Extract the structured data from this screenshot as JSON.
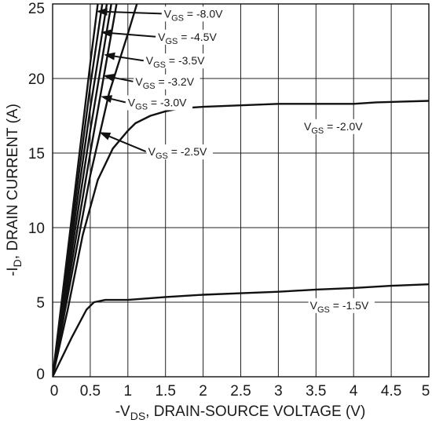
{
  "chart_data": {
    "type": "line",
    "title": "",
    "xlabel": {
      "prefix": "-V",
      "sub": "DS",
      "suffix": ", DRAIN-SOURCE VOLTAGE (V)"
    },
    "ylabel": {
      "prefix": "-I",
      "sub": "D",
      "suffix": ", DRAIN CURRENT (A)"
    },
    "xlim": [
      0,
      5
    ],
    "ylim": [
      0,
      25
    ],
    "x_ticks": [
      0,
      0.5,
      1,
      1.5,
      2,
      2.5,
      3,
      3.5,
      4,
      4.5,
      5
    ],
    "x_tick_labels": [
      "0",
      "0.5",
      "1",
      "1.5",
      "2",
      "2.5",
      "3",
      "3.5",
      "4",
      "4.5",
      "5"
    ],
    "y_ticks": [
      0,
      5,
      10,
      15,
      20,
      25
    ],
    "y_tick_labels": [
      "0",
      "5",
      "10",
      "15",
      "20",
      "25"
    ],
    "grid": true,
    "series": [
      {
        "name": "V_GS = -1.5V",
        "label_prefix": "V",
        "label_sub": "GS",
        "label_suffix": " = -1.5V",
        "points": [
          [
            0,
            0
          ],
          [
            0.25,
            2.6
          ],
          [
            0.45,
            4.5
          ],
          [
            0.55,
            5.0
          ],
          [
            0.7,
            5.15
          ],
          [
            1.0,
            5.15
          ],
          [
            1.5,
            5.35
          ],
          [
            2.0,
            5.5
          ],
          [
            2.5,
            5.6
          ],
          [
            3.0,
            5.7
          ],
          [
            3.5,
            5.85
          ],
          [
            4.0,
            5.95
          ],
          [
            4.5,
            6.1
          ],
          [
            5.0,
            6.2
          ]
        ]
      },
      {
        "name": "V_GS = -2.0V",
        "label_prefix": "V",
        "label_sub": "GS",
        "label_suffix": " = -2.0V",
        "points": [
          [
            0,
            0
          ],
          [
            0.2,
            4.5
          ],
          [
            0.4,
            9.5
          ],
          [
            0.6,
            13.2
          ],
          [
            0.8,
            15.3
          ],
          [
            1.0,
            16.5
          ],
          [
            1.1,
            17.0
          ],
          [
            1.3,
            17.5
          ],
          [
            1.5,
            17.8
          ],
          [
            1.7,
            18.0
          ],
          [
            2.0,
            18.1
          ],
          [
            2.5,
            18.2
          ],
          [
            3.0,
            18.3
          ],
          [
            4.0,
            18.3
          ],
          [
            4.3,
            18.4
          ],
          [
            5.0,
            18.5
          ]
        ]
      },
      {
        "name": "V_GS = -2.5V",
        "label_prefix": "V",
        "label_sub": "GS",
        "label_suffix": " = -2.5V",
        "points": [
          [
            0,
            0
          ],
          [
            0.5,
            13.5
          ],
          [
            0.75,
            19.0
          ],
          [
            1.0,
            23.0
          ],
          [
            1.12,
            25.0
          ]
        ]
      },
      {
        "name": "V_GS = -3.0V",
        "label_prefix": "V",
        "label_sub": "GS",
        "label_suffix": " = -3.0V",
        "points": [
          [
            0,
            0
          ],
          [
            0.5,
            15.0
          ],
          [
            0.85,
            25.0
          ]
        ]
      },
      {
        "name": "V_GS = -3.2V",
        "label_prefix": "V",
        "label_sub": "GS",
        "label_suffix": " = -3.2V",
        "points": [
          [
            0,
            0
          ],
          [
            0.5,
            16.5
          ],
          [
            0.78,
            25.0
          ]
        ]
      },
      {
        "name": "V_GS = -3.5V",
        "label_prefix": "V",
        "label_sub": "GS",
        "label_suffix": " = -3.5V",
        "points": [
          [
            0,
            0
          ],
          [
            0.5,
            18.0
          ],
          [
            0.72,
            25.0
          ]
        ]
      },
      {
        "name": "V_GS = -4.5V",
        "label_prefix": "V",
        "label_sub": "GS",
        "label_suffix": " = -4.5V",
        "points": [
          [
            0,
            0
          ],
          [
            0.5,
            19.5
          ],
          [
            0.66,
            25.0
          ]
        ]
      },
      {
        "name": "V_GS = -8.0V",
        "label_prefix": "V",
        "label_sub": "GS",
        "label_suffix": " = -8.0V",
        "points": [
          [
            0,
            0
          ],
          [
            0.5,
            21.0
          ],
          [
            0.6,
            25.0
          ]
        ]
      }
    ],
    "annotations": [
      {
        "series": 7,
        "text_x": 1.48,
        "text_y": 24.35,
        "tip_x": 0.58,
        "tip_y": 24.5,
        "arrow": true
      },
      {
        "series": 6,
        "text_x": 1.4,
        "text_y": 22.8,
        "tip_x": 0.64,
        "tip_y": 23.1,
        "arrow": true
      },
      {
        "series": 5,
        "text_x": 1.24,
        "text_y": 21.2,
        "tip_x": 0.68,
        "tip_y": 21.6,
        "arrow": true
      },
      {
        "series": 4,
        "text_x": 1.1,
        "text_y": 19.8,
        "tip_x": 0.67,
        "tip_y": 20.2,
        "arrow": true
      },
      {
        "series": 3,
        "text_x": 1.0,
        "text_y": 18.4,
        "tip_x": 0.64,
        "tip_y": 18.8,
        "arrow": true
      },
      {
        "series": 2,
        "text_x": 1.27,
        "text_y": 15.1,
        "tip_x": 0.62,
        "tip_y": 16.4,
        "arrow": true
      },
      {
        "series": 1,
        "text_x": 3.34,
        "text_y": 16.8,
        "tip_x": 3.34,
        "tip_y": 16.8,
        "arrow": false
      },
      {
        "series": 0,
        "text_x": 3.42,
        "text_y": 4.8,
        "tip_x": 3.42,
        "tip_y": 4.8,
        "arrow": false
      }
    ]
  }
}
